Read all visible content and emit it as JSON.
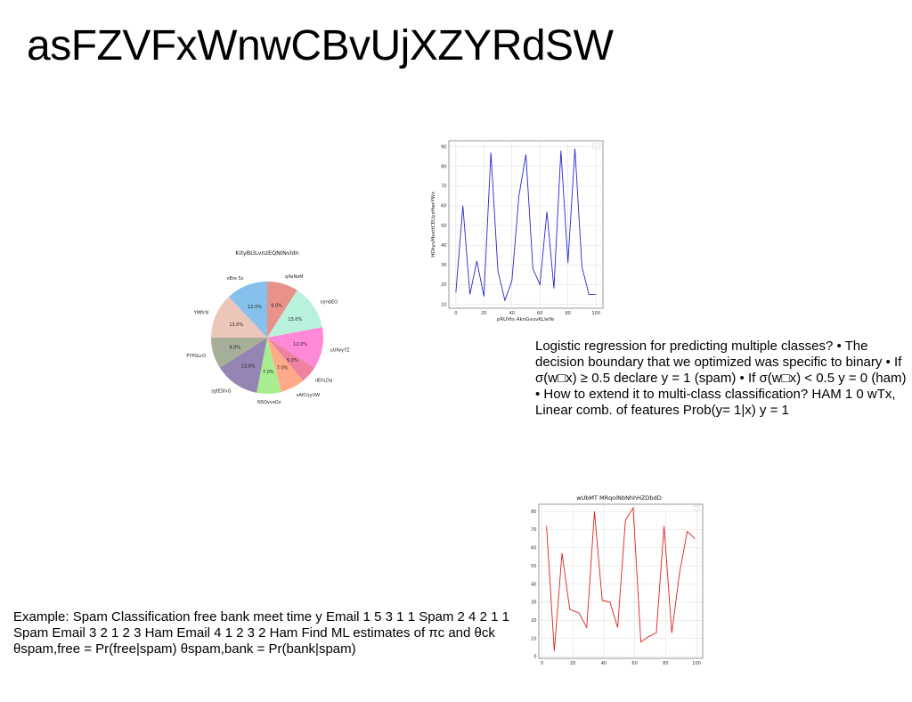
{
  "slide": {
    "title": "asFZVFxWnwCBvUjXZYRdSW",
    "logistic_text": "Logistic regression for predicting multiple classes? • The decision boundary that we optimized was specific to binary • If σ(w□x) ≥ 0.5 declare y = 1 (spam) • If σ(w□x) < 0.5 y = 0 (ham) • How to extend it to multi-class classification? HAM 1 0 wTx, Linear comb. of features Prob(y= 1|x) y = 1",
    "example_text": "Example: Spam Classification free bank meet time y Email 1 5 3 1 1 Spam 2 4 2 1 1 Spam Email 3 2 1 2 3 Ham Email 4 1 2 3 2 Ham Find ML estimates of πc and θck θspam,free = Pr(free|spam) θspam,bank = Pr(bank|spam)"
  },
  "chart_data": [
    {
      "type": "pie",
      "title": "KityBULvnzEQNINvldn",
      "labels": [
        "qXeNoM",
        "njmbEO",
        "uUfwyYZ",
        "dEhLDq",
        "xAfCrjyUW",
        "NSQvvaQz",
        "sgfESfxG",
        "FYPGLrO",
        "YMfIrN",
        "vBre Sx"
      ],
      "values": [
        9.0,
        13.0,
        12.0,
        5.0,
        7.0,
        7.0,
        13.0,
        9.0,
        13.0,
        12.0
      ],
      "value_labels": [
        "9.0%",
        "13.0%",
        "12.0%",
        "5.0%",
        "7.0%",
        "7.0%",
        "13.0%",
        "9.0%",
        "13.0%",
        "12.0%"
      ],
      "colors": [
        "#e8928a",
        "#b9f2dc",
        "#ff89d8",
        "#ee82a0",
        "#ffab8a",
        "#a8ee90",
        "#9585b4",
        "#a6b098",
        "#ecc6b8",
        "#86c1ee"
      ],
      "start_angle_deg": 90,
      "direction": "clockwise"
    },
    {
      "type": "line",
      "title": "",
      "xlabel": "pRUVts AknGvuvKLIeYe",
      "ylabel": "HOkyuMsettCEUyzHwrYWz",
      "x": [
        0,
        5,
        10,
        15,
        20,
        25,
        30,
        35,
        40,
        45,
        50,
        55,
        60,
        65,
        70,
        75,
        80,
        85,
        90,
        95,
        100
      ],
      "series": [
        {
          "values": [
            16,
            60,
            15,
            32,
            14,
            87,
            27,
            12,
            22,
            65,
            86,
            28,
            20,
            57,
            18,
            88,
            31,
            89,
            29,
            15,
            15
          ],
          "color": "#2828cc"
        }
      ],
      "xlim": [
        -5,
        105
      ],
      "ylim": [
        8,
        93
      ],
      "xticks": [
        0,
        20,
        40,
        60,
        80,
        100
      ],
      "yticks": [
        10,
        20,
        30,
        40,
        50,
        60,
        70,
        80,
        90
      ],
      "grid": true,
      "legend": "top-right"
    },
    {
      "type": "line",
      "title": "wUbMT MRqolNbNhhHZDbdD",
      "xlabel": "",
      "ylabel": "",
      "x": [
        3,
        8,
        13,
        18,
        24,
        29,
        34,
        39,
        44,
        49,
        54,
        59,
        64,
        69,
        74,
        79,
        84,
        89,
        94,
        99
      ],
      "series": [
        {
          "values": [
            72,
            3,
            57,
            26,
            24,
            16,
            80,
            31,
            30,
            16,
            75,
            82,
            8,
            11,
            13,
            72,
            13,
            46,
            69,
            65
          ],
          "color": "#e02020"
        }
      ],
      "xlim": [
        -2,
        104
      ],
      "ylim": [
        -1,
        84
      ],
      "xticks": [
        0,
        20,
        40,
        60,
        80,
        100
      ],
      "yticks": [
        0,
        10,
        20,
        30,
        40,
        50,
        60,
        70,
        80
      ],
      "grid": true,
      "legend": "top-right"
    }
  ]
}
